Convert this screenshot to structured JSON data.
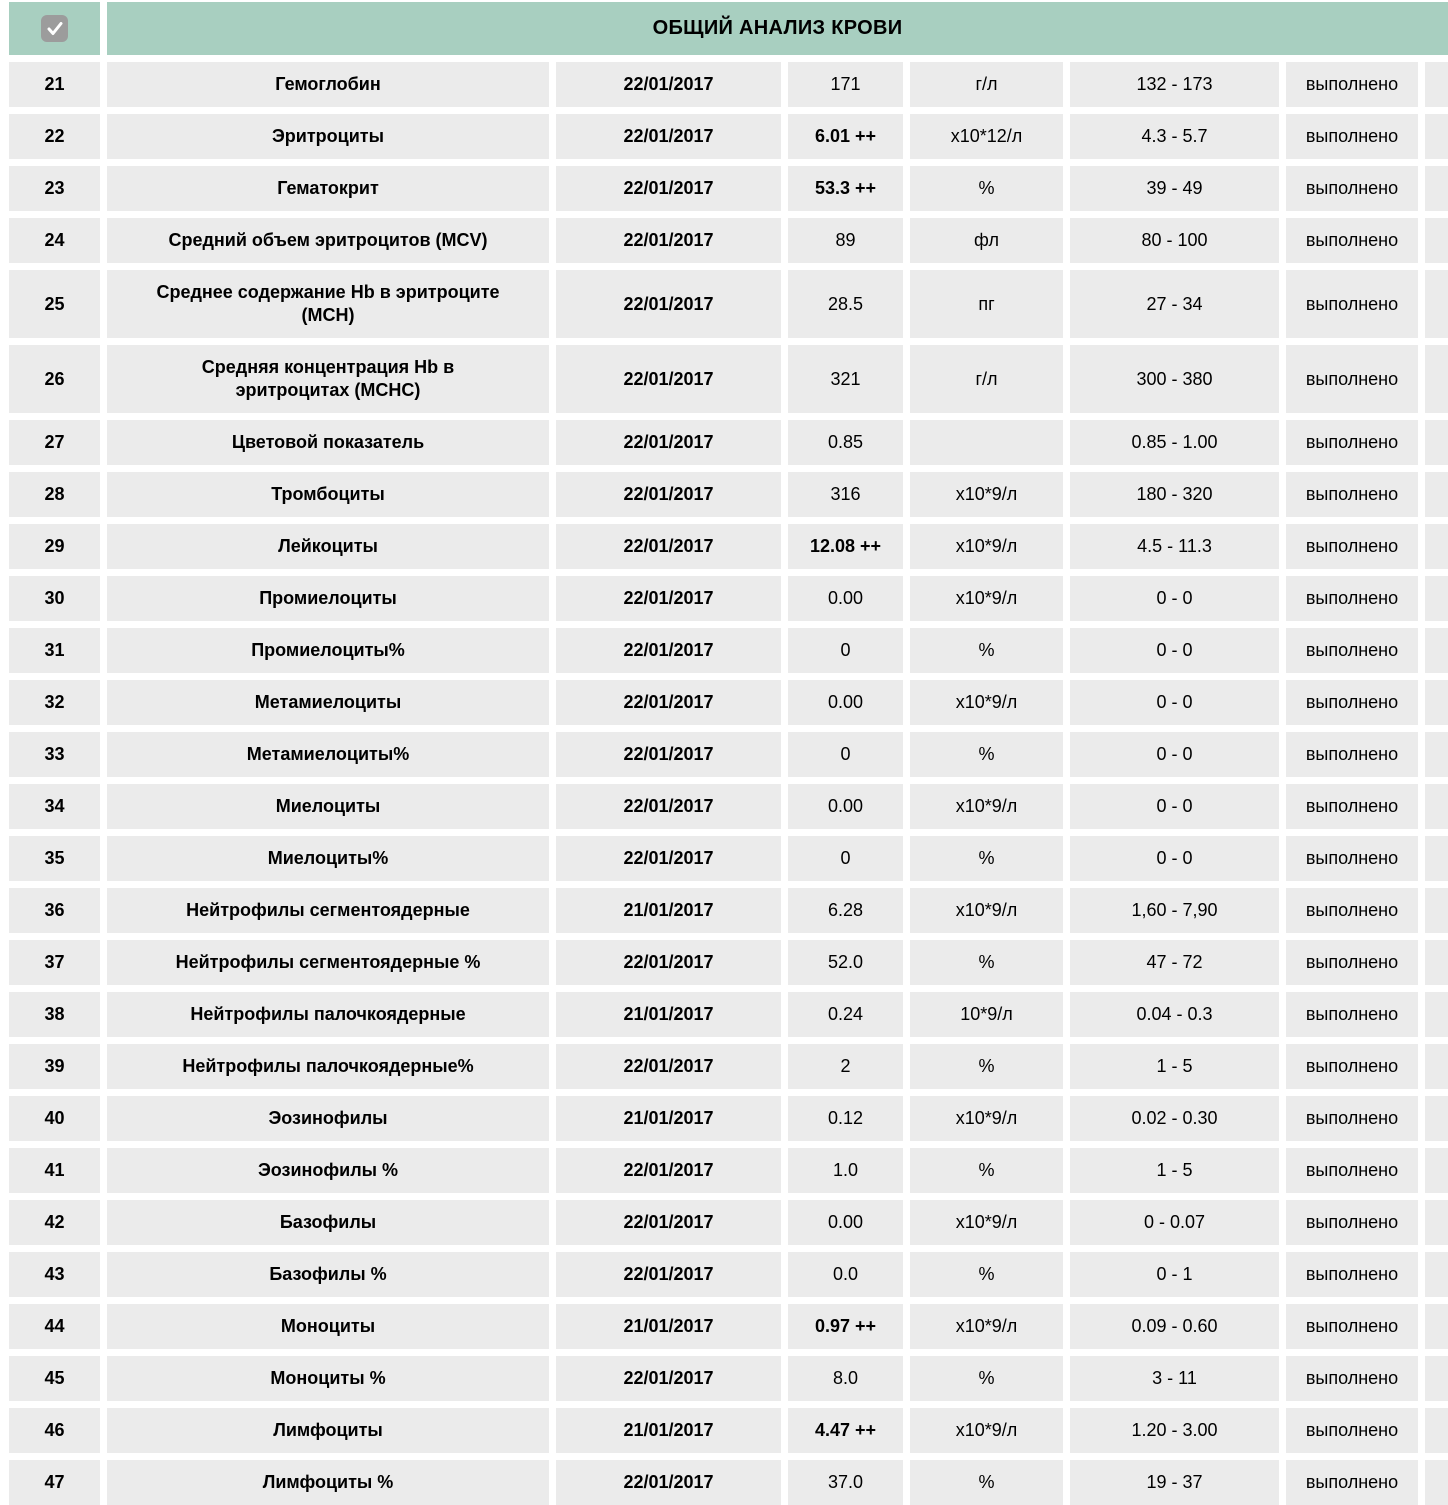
{
  "header": {
    "title": "ОБЩИЙ АНАЛИЗ КРОВИ",
    "select_all_checked": true
  },
  "colors": {
    "header_green": "#a8cfc0",
    "row_gray": "#ebebeb",
    "checkbox_gray": "#9c9c9c",
    "text": "#000000"
  },
  "table": {
    "rows": [
      {
        "num": "21",
        "name": "Гемоглобин",
        "date": "22/01/2017",
        "value": "171",
        "flagged": false,
        "unit": "г/л",
        "range": "132 - 173",
        "status": "выполнено"
      },
      {
        "num": "22",
        "name": "Эритроциты",
        "date": "22/01/2017",
        "value": "6.01 ++",
        "flagged": true,
        "unit": "х10*12/л",
        "range": "4.3 - 5.7",
        "status": "выполнено"
      },
      {
        "num": "23",
        "name": "Гематокрит",
        "date": "22/01/2017",
        "value": "53.3 ++",
        "flagged": true,
        "unit": "%",
        "range": "39 - 49",
        "status": "выполнено"
      },
      {
        "num": "24",
        "name": "Средний объем эритроцитов (MCV)",
        "date": "22/01/2017",
        "value": "89",
        "flagged": false,
        "unit": "фл",
        "range": "80 - 100",
        "status": "выполнено"
      },
      {
        "num": "25",
        "name": "Среднее содержание Hb в эритроците (MCH)",
        "date": "22/01/2017",
        "value": "28.5",
        "flagged": false,
        "unit": "пг",
        "range": "27 - 34",
        "status": "выполнено"
      },
      {
        "num": "26",
        "name": "Средняя концентрация Hb в эритроцитах (MCHC)",
        "date": "22/01/2017",
        "value": "321",
        "flagged": false,
        "unit": "г/л",
        "range": "300 - 380",
        "status": "выполнено"
      },
      {
        "num": "27",
        "name": "Цветовой показатель",
        "date": "22/01/2017",
        "value": "0.85",
        "flagged": false,
        "unit": "",
        "range": "0.85 - 1.00",
        "status": "выполнено"
      },
      {
        "num": "28",
        "name": "Тромбоциты",
        "date": "22/01/2017",
        "value": "316",
        "flagged": false,
        "unit": "х10*9/л",
        "range": "180 - 320",
        "status": "выполнено"
      },
      {
        "num": "29",
        "name": "Лейкоциты",
        "date": "22/01/2017",
        "value": "12.08 ++",
        "flagged": true,
        "unit": "х10*9/л",
        "range": "4.5 - 11.3",
        "status": "выполнено"
      },
      {
        "num": "30",
        "name": "Промиелоциты",
        "date": "22/01/2017",
        "value": "0.00",
        "flagged": false,
        "unit": "х10*9/л",
        "range": "0 - 0",
        "status": "выполнено"
      },
      {
        "num": "31",
        "name": "Промиелоциты%",
        "date": "22/01/2017",
        "value": "0",
        "flagged": false,
        "unit": "%",
        "range": "0 - 0",
        "status": "выполнено"
      },
      {
        "num": "32",
        "name": "Метамиелоциты",
        "date": "22/01/2017",
        "value": "0.00",
        "flagged": false,
        "unit": "х10*9/л",
        "range": "0 - 0",
        "status": "выполнено"
      },
      {
        "num": "33",
        "name": "Метамиелоциты%",
        "date": "22/01/2017",
        "value": "0",
        "flagged": false,
        "unit": "%",
        "range": "0 - 0",
        "status": "выполнено"
      },
      {
        "num": "34",
        "name": "Миелоциты",
        "date": "22/01/2017",
        "value": "0.00",
        "flagged": false,
        "unit": "х10*9/л",
        "range": "0 - 0",
        "status": "выполнено"
      },
      {
        "num": "35",
        "name": "Миелоциты%",
        "date": "22/01/2017",
        "value": "0",
        "flagged": false,
        "unit": "%",
        "range": "0 - 0",
        "status": "выполнено"
      },
      {
        "num": "36",
        "name": "Нейтрофилы сегментоядерные",
        "date": "21/01/2017",
        "value": "6.28",
        "flagged": false,
        "unit": "х10*9/л",
        "range": "1,60 - 7,90",
        "status": "выполнено"
      },
      {
        "num": "37",
        "name": "Нейтрофилы сегментоядерные %",
        "date": "22/01/2017",
        "value": "52.0",
        "flagged": false,
        "unit": "%",
        "range": "47 - 72",
        "status": "выполнено"
      },
      {
        "num": "38",
        "name": "Нейтрофилы палочкоядерные",
        "date": "21/01/2017",
        "value": "0.24",
        "flagged": false,
        "unit": "10*9/л",
        "range": "0.04 - 0.3",
        "status": "выполнено"
      },
      {
        "num": "39",
        "name": "Нейтрофилы палочкоядерные%",
        "date": "22/01/2017",
        "value": "2",
        "flagged": false,
        "unit": "%",
        "range": "1 - 5",
        "status": "выполнено"
      },
      {
        "num": "40",
        "name": "Эозинофилы",
        "date": "21/01/2017",
        "value": "0.12",
        "flagged": false,
        "unit": "х10*9/л",
        "range": "0.02 - 0.30",
        "status": "выполнено"
      },
      {
        "num": "41",
        "name": "Эозинофилы %",
        "date": "22/01/2017",
        "value": "1.0",
        "flagged": false,
        "unit": "%",
        "range": "1 - 5",
        "status": "выполнено"
      },
      {
        "num": "42",
        "name": "Базофилы",
        "date": "22/01/2017",
        "value": "0.00",
        "flagged": false,
        "unit": "х10*9/л",
        "range": "0 - 0.07",
        "status": "выполнено"
      },
      {
        "num": "43",
        "name": "Базофилы %",
        "date": "22/01/2017",
        "value": "0.0",
        "flagged": false,
        "unit": "%",
        "range": "0 - 1",
        "status": "выполнено"
      },
      {
        "num": "44",
        "name": "Моноциты",
        "date": "21/01/2017",
        "value": "0.97 ++",
        "flagged": true,
        "unit": "х10*9/л",
        "range": "0.09 - 0.60",
        "status": "выполнено"
      },
      {
        "num": "45",
        "name": "Моноциты %",
        "date": "22/01/2017",
        "value": "8.0",
        "flagged": false,
        "unit": "%",
        "range": "3 - 11",
        "status": "выполнено"
      },
      {
        "num": "46",
        "name": "Лимфоциты",
        "date": "21/01/2017",
        "value": "4.47 ++",
        "flagged": true,
        "unit": "х10*9/л",
        "range": "1.20 - 3.00",
        "status": "выполнено"
      },
      {
        "num": "47",
        "name": "Лимфоциты %",
        "date": "22/01/2017",
        "value": "37.0",
        "flagged": false,
        "unit": "%",
        "range": "19 - 37",
        "status": "выполнено"
      }
    ]
  }
}
